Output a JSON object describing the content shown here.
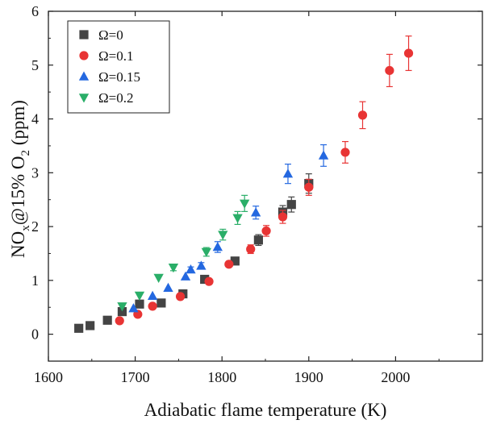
{
  "chart_data": {
    "type": "scatter",
    "title": "",
    "xlabel": "Adiabatic flame temperature (K)",
    "ylabel_parts": {
      "main": "NO",
      "sub1": "x",
      "mid": "@15% O",
      "sub2": "2",
      "unit": " (ppm)"
    },
    "xlim": [
      1600,
      2100
    ],
    "ylim": [
      -0.5,
      6
    ],
    "xticks": [
      1600,
      1700,
      1800,
      1900,
      2000
    ],
    "yticks": [
      0,
      1,
      2,
      3,
      4,
      5,
      6
    ],
    "legend_position": "top-left",
    "series": [
      {
        "name": "Ω=0",
        "color": "#444444",
        "marker": "square",
        "x": [
          1635,
          1648,
          1668,
          1685,
          1705,
          1730,
          1755,
          1780,
          1815,
          1842,
          1870,
          1880,
          1900
        ],
        "y": [
          0.11,
          0.16,
          0.26,
          0.42,
          0.56,
          0.58,
          0.75,
          1.02,
          1.36,
          1.75,
          2.27,
          2.41,
          2.8
        ],
        "err": [
          0,
          0,
          0,
          0,
          0,
          0,
          0,
          0,
          0.06,
          0.1,
          0.12,
          0.14,
          0.18
        ]
      },
      {
        "name": "Ω=0.1",
        "color": "#e83434",
        "marker": "circle",
        "x": [
          1682,
          1703,
          1720,
          1752,
          1785,
          1808,
          1833,
          1851,
          1870,
          1900,
          1942,
          1962,
          1993,
          2015
        ],
        "y": [
          0.25,
          0.37,
          0.52,
          0.7,
          0.98,
          1.3,
          1.58,
          1.92,
          2.18,
          2.73,
          3.38,
          4.07,
          4.9,
          5.22
        ],
        "err": [
          0,
          0,
          0,
          0,
          0,
          0,
          0.08,
          0.1,
          0.12,
          0.15,
          0.2,
          0.25,
          0.3,
          0.32
        ]
      },
      {
        "name": "Ω=0.15",
        "color": "#2468e0",
        "marker": "triangle-up",
        "x": [
          1698,
          1720,
          1738,
          1758,
          1764,
          1776,
          1795,
          1839,
          1876,
          1917
        ],
        "y": [
          0.48,
          0.71,
          0.86,
          1.07,
          1.2,
          1.27,
          1.62,
          2.26,
          2.98,
          3.32
        ],
        "err": [
          0,
          0,
          0,
          0,
          0.05,
          0.06,
          0.1,
          0.12,
          0.18,
          0.2
        ]
      },
      {
        "name": "Ω=0.2",
        "color": "#2aae68",
        "marker": "triangle-down",
        "x": [
          1685,
          1705,
          1727,
          1744,
          1782,
          1801,
          1818,
          1826
        ],
        "y": [
          0.52,
          0.72,
          1.05,
          1.24,
          1.53,
          1.85,
          2.16,
          2.43
        ],
        "err": [
          0,
          0,
          0,
          0.06,
          0.08,
          0.1,
          0.12,
          0.15
        ]
      }
    ]
  }
}
